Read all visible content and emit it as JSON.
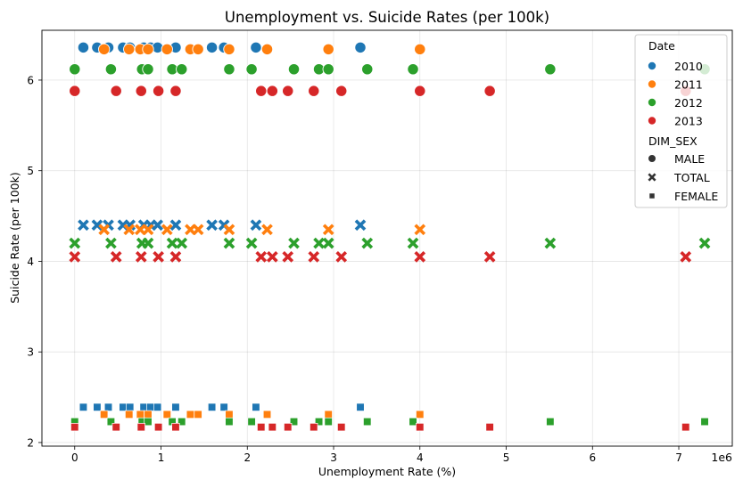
{
  "chart_data": {
    "type": "scatter",
    "title": "Unemployment vs. Suicide Rates (per 100k)",
    "xlabel": "Unemployment Rate (%)",
    "ylabel": "Suicide Rate (per 100k)",
    "x_scale_label": "1e6",
    "xlim": [
      -380000,
      7620000
    ],
    "ylim": [
      1.96,
      6.55
    ],
    "x_ticks": [
      0,
      1000000,
      2000000,
      3000000,
      4000000,
      5000000,
      6000000,
      7000000
    ],
    "x_tick_labels": [
      "0",
      "1",
      "2",
      "3",
      "4",
      "5",
      "6",
      "7"
    ],
    "y_ticks": [
      2,
      3,
      4,
      5,
      6
    ],
    "y_tick_labels": [
      "2",
      "3",
      "4",
      "5",
      "6"
    ],
    "grid": true,
    "legend": {
      "placement": "top-right",
      "hue_title": "Date",
      "style_title": "DIM_SEX",
      "hue_entries": [
        {
          "label": "2010",
          "color": "#1f77b4"
        },
        {
          "label": "2011",
          "color": "#ff7f0e"
        },
        {
          "label": "2012",
          "color": "#2ca02c"
        },
        {
          "label": "2013",
          "color": "#d62728"
        }
      ],
      "style_entries": [
        {
          "label": "MALE",
          "marker": "circle"
        },
        {
          "label": "TOTAL",
          "marker": "x"
        },
        {
          "label": "FEMALE",
          "marker": "square"
        }
      ]
    },
    "series": [
      {
        "year": "2010",
        "color": "#1f77b4",
        "groups": [
          {
            "sex": "MALE",
            "marker": "circle",
            "y": 6.36,
            "x": [
              100000,
              260000,
              390000,
              560000,
              640000,
              800000,
              880000,
              960000,
              1170000,
              1590000,
              1730000,
              2100000,
              3310000
            ]
          },
          {
            "sex": "TOTAL",
            "marker": "x",
            "y": 4.4,
            "x": [
              100000,
              260000,
              390000,
              560000,
              640000,
              800000,
              880000,
              960000,
              1170000,
              1590000,
              1730000,
              2100000,
              3310000
            ]
          },
          {
            "sex": "FEMALE",
            "marker": "square",
            "y": 2.39,
            "x": [
              100000,
              260000,
              390000,
              560000,
              640000,
              800000,
              880000,
              960000,
              1170000,
              1590000,
              1730000,
              2100000,
              3310000
            ]
          }
        ]
      },
      {
        "year": "2011",
        "color": "#ff7f0e",
        "groups": [
          {
            "sex": "MALE",
            "marker": "circle",
            "y": 6.34,
            "x": [
              340000,
              630000,
              760000,
              850000,
              1070000,
              1340000,
              1430000,
              1790000,
              2230000,
              2940000,
              4000000
            ]
          },
          {
            "sex": "TOTAL",
            "marker": "x",
            "y": 4.35,
            "x": [
              340000,
              630000,
              760000,
              850000,
              1070000,
              1340000,
              1430000,
              1790000,
              2230000,
              2940000,
              4000000
            ]
          },
          {
            "sex": "FEMALE",
            "marker": "square",
            "y": 2.31,
            "x": [
              340000,
              630000,
              760000,
              850000,
              1070000,
              1340000,
              1430000,
              1790000,
              2230000,
              2940000,
              4000000
            ]
          }
        ]
      },
      {
        "year": "2012",
        "color": "#2ca02c",
        "groups": [
          {
            "sex": "MALE",
            "marker": "circle",
            "y": 6.12,
            "x": [
              0,
              420000,
              780000,
              850000,
              1130000,
              1240000,
              1790000,
              2050000,
              2540000,
              2830000,
              2940000,
              3390000,
              3920000,
              5510000,
              7300000
            ]
          },
          {
            "sex": "TOTAL",
            "marker": "x",
            "y": 4.2,
            "x": [
              0,
              420000,
              780000,
              850000,
              1130000,
              1240000,
              1790000,
              2050000,
              2540000,
              2830000,
              2940000,
              3390000,
              3920000,
              5510000,
              7300000
            ]
          },
          {
            "sex": "FEMALE",
            "marker": "square",
            "y": 2.23,
            "x": [
              0,
              420000,
              780000,
              850000,
              1130000,
              1240000,
              1790000,
              2050000,
              2540000,
              2830000,
              2940000,
              3390000,
              3920000,
              5510000,
              7300000
            ]
          }
        ]
      },
      {
        "year": "2013",
        "color": "#d62728",
        "groups": [
          {
            "sex": "MALE",
            "marker": "circle",
            "y": 5.88,
            "x": [
              0,
              480000,
              770000,
              970000,
              1170000,
              2160000,
              2290000,
              2470000,
              2770000,
              3090000,
              4000000,
              4810000,
              7080000
            ]
          },
          {
            "sex": "TOTAL",
            "marker": "x",
            "y": 4.05,
            "x": [
              0,
              480000,
              770000,
              970000,
              1170000,
              2160000,
              2290000,
              2470000,
              2770000,
              3090000,
              4000000,
              4810000,
              7080000
            ]
          },
          {
            "sex": "FEMALE",
            "marker": "square",
            "y": 2.17,
            "x": [
              0,
              480000,
              770000,
              970000,
              1170000,
              2160000,
              2290000,
              2470000,
              2770000,
              3090000,
              4000000,
              4810000,
              7080000
            ]
          }
        ]
      }
    ]
  }
}
